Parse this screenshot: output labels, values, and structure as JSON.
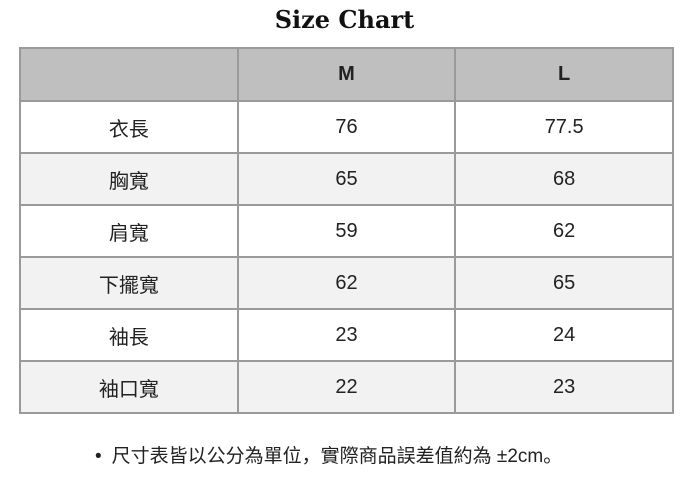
{
  "title": "Size Chart",
  "table": {
    "headers": [
      "",
      "M",
      "L"
    ],
    "rows": [
      {
        "label": "衣長",
        "m": "76",
        "l": "77.5"
      },
      {
        "label": "胸寬",
        "m": "65",
        "l": "68"
      },
      {
        "label": "肩寬",
        "m": "59",
        "l": "62"
      },
      {
        "label": "下擺寬",
        "m": "62",
        "l": "65"
      },
      {
        "label": "袖長",
        "m": "23",
        "l": "24"
      },
      {
        "label": "袖口寬",
        "m": "22",
        "l": "23"
      }
    ]
  },
  "note": "尺寸表皆以公分為單位，實際商品誤差值約為 ±2cm。",
  "colors": {
    "header_bg": "#bfbfbf",
    "alt_row_bg": "#f2f2f2",
    "border": "#9a9a9a"
  }
}
